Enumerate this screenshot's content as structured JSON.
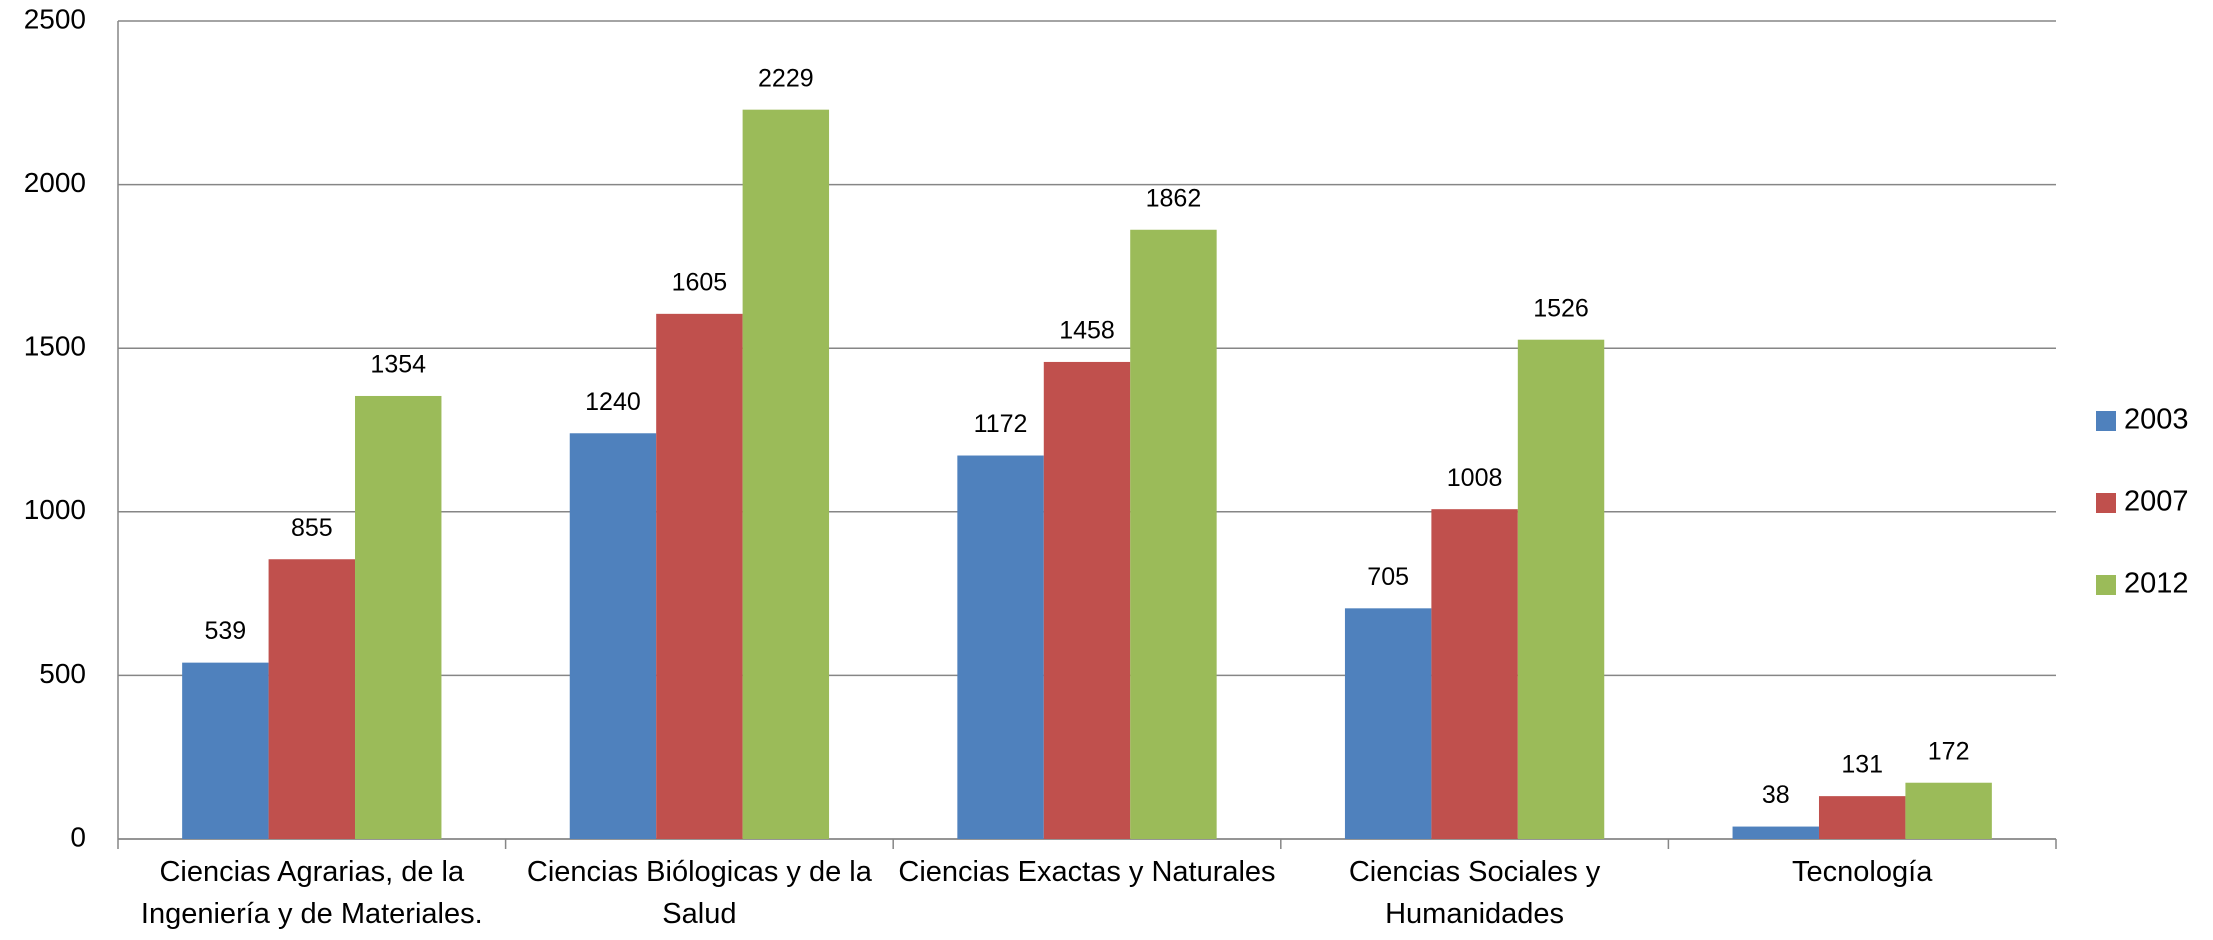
{
  "chart_data": {
    "type": "bar",
    "categories": [
      "Ciencias Agrarias, de la Ingeniería y de Materiales.",
      "Ciencias Biólogicas y de la Salud",
      "Ciencias Exactas y Naturales",
      "Ciencias Sociales y Humanidades",
      "Tecnología"
    ],
    "series": [
      {
        "name": "2003",
        "color": "#4f81bd",
        "values": [
          539,
          1240,
          1172,
          705,
          38
        ]
      },
      {
        "name": "2007",
        "color": "#c0504d",
        "values": [
          855,
          1605,
          1458,
          1008,
          131
        ]
      },
      {
        "name": "2012",
        "color": "#9bbb59",
        "values": [
          1354,
          2229,
          1862,
          1526,
          172
        ]
      }
    ],
    "ylim": [
      0,
      2500
    ],
    "yticks": [
      0,
      500,
      1000,
      1500,
      2000,
      2500
    ],
    "grid": true,
    "legend": "right"
  }
}
